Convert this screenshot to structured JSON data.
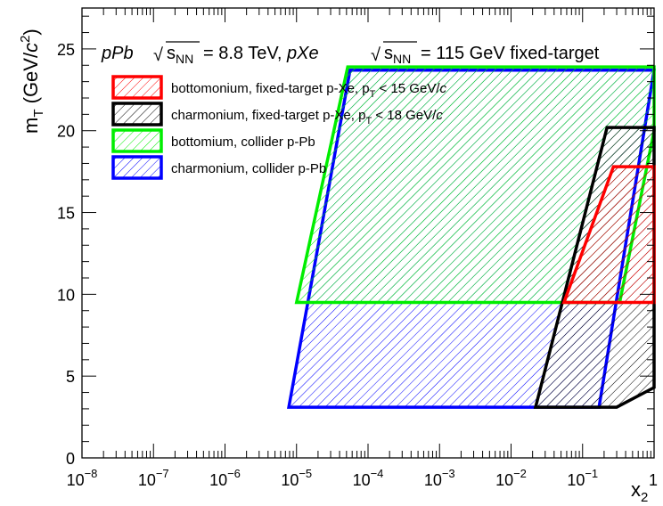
{
  "chart_data": {
    "type": "area",
    "title": "",
    "annotation": {
      "part1_italic": "pPb",
      "part2": "= 8.8 TeV, ",
      "part3_italic": "pXe",
      "part4": "= 115 GeV fixed-target",
      "sqrt_symbol": "√",
      "s_label": "s",
      "nn_sub": "NN"
    },
    "xlabel": {
      "main": "x",
      "sub": "2"
    },
    "ylabel": {
      "main": "m",
      "sub": "T",
      "unit_open": " (GeV/",
      "unit_c": "c",
      "unit_sup": "2",
      "unit_close": ")"
    },
    "xscale": "log",
    "xlim": [
      1e-08,
      1
    ],
    "ylim": [
      0,
      27.5
    ],
    "x_ticks": [
      {
        "value": 1e-08,
        "base": "10",
        "exp": "−8"
      },
      {
        "value": 1e-07,
        "base": "10",
        "exp": "−7"
      },
      {
        "value": 1e-06,
        "base": "10",
        "exp": "−6"
      },
      {
        "value": 1e-05,
        "base": "10",
        "exp": "−5"
      },
      {
        "value": 0.0001,
        "base": "10",
        "exp": "−4"
      },
      {
        "value": 0.001,
        "base": "10",
        "exp": "−3"
      },
      {
        "value": 0.01,
        "base": "10",
        "exp": "−2"
      },
      {
        "value": 0.1,
        "base": "10",
        "exp": "−1"
      },
      {
        "value": 1,
        "base": "1",
        "exp": ""
      }
    ],
    "y_ticks": [
      0,
      5,
      10,
      15,
      20,
      25
    ],
    "legend_position": "top-left",
    "series": [
      {
        "name": "charmonium, collider p-Pb",
        "color": "#0000ff",
        "fill": "hatch",
        "polygon": [
          [
            7.8e-06,
            3.1
          ],
          [
            0.17,
            3.1
          ],
          [
            1.0,
            23.7
          ],
          [
            5.6e-05,
            23.7
          ]
        ]
      },
      {
        "name": "bottomium, collider p-Pb",
        "color": "#00ee00",
        "fill": "hatch",
        "polygon": [
          [
            1e-05,
            9.5
          ],
          [
            0.33,
            9.5
          ],
          [
            1.0,
            20.0
          ],
          [
            1.0,
            23.9
          ],
          [
            5.2e-05,
            23.9
          ]
        ]
      },
      {
        "name": "charmonium, fixed-target p-Xe, p_T < 18 GeV/c",
        "color": "#000000",
        "fill": "hatch",
        "polygon": [
          [
            0.022,
            3.1
          ],
          [
            0.3,
            3.1
          ],
          [
            1.0,
            4.3
          ],
          [
            1.0,
            20.2
          ],
          [
            0.22,
            20.2
          ]
        ]
      },
      {
        "name": "bottomonium, fixed-target p-Xe, p_T < 15 GeV/c",
        "color": "#ff0000",
        "fill": "hatch",
        "polygon": [
          [
            0.055,
            9.5
          ],
          [
            1.0,
            9.5
          ],
          [
            1.0,
            17.8
          ],
          [
            0.27,
            17.8
          ]
        ]
      }
    ],
    "legend": [
      {
        "color": "#ff0000",
        "text": "bottomonium, fixed-target p-Xe, p",
        "sub": "T",
        "tail": " < 15 GeV/",
        "c": "c"
      },
      {
        "color": "#000000",
        "text": "charmonium, fixed-target p-Xe, p",
        "sub": "T",
        "tail": " < 18 GeV/",
        "c": "c"
      },
      {
        "color": "#00ee00",
        "text": "bottomium, collider p-Pb",
        "sub": "",
        "tail": "",
        "c": ""
      },
      {
        "color": "#0000ff",
        "text": "charmonium, collider p-Pb",
        "sub": "",
        "tail": "",
        "c": ""
      }
    ]
  }
}
